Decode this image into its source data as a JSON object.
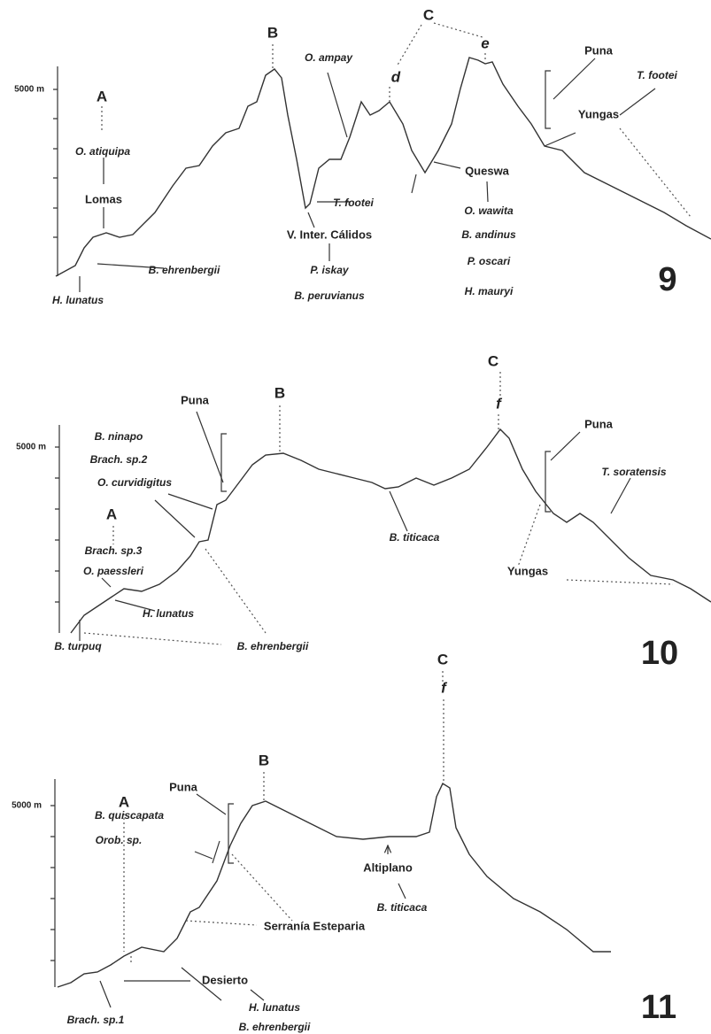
{
  "panels": [
    {
      "number": "9",
      "axis_label": "5000 m",
      "labels": [
        "A",
        "B",
        "C",
        "d",
        "e",
        "O. ampay",
        "Puna",
        "T. footei",
        "Yungas",
        "O. atiquipa",
        "Lomas",
        "T. footei",
        "V. Inter. Cálidos",
        "Queswa",
        "O. wawita",
        "B. andinus",
        "P. oscari",
        "H. mauryi",
        "B. ehrenbergii",
        "P. iskay",
        "B. peruvianus",
        "H. lunatus"
      ]
    },
    {
      "number": "10",
      "axis_label": "5000 m",
      "labels": [
        "C",
        "f",
        "Puna",
        "B",
        "Puna",
        "B. ninapo",
        "Brach. sp.2",
        "O. curvidigitus",
        "T. soratensis",
        "A",
        "Brach. sp.3",
        "O. paessleri",
        "B. titicaca",
        "Yungas",
        "H. lunatus",
        "B. turpuq",
        "B. ehrenbergii"
      ]
    },
    {
      "number": "11",
      "axis_label": "5000 m",
      "labels": [
        "C",
        "f",
        "B",
        "Puna",
        "B. quiscapata",
        "Orob. sp.",
        "Altiplano",
        "A",
        "B. titicaca",
        "Serranía Esteparia",
        "Desierto",
        "H. lunatus",
        "B. ehrenbergii",
        "Brach. sp.1"
      ]
    }
  ]
}
